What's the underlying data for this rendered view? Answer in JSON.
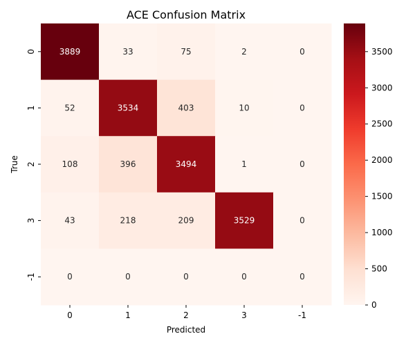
{
  "chart_data": {
    "type": "heatmap",
    "title": "ACE Confusion Matrix",
    "xlabel": "Predicted",
    "ylabel": "True",
    "x_categories": [
      "0",
      "1",
      "2",
      "3",
      "-1"
    ],
    "y_categories": [
      "0",
      "1",
      "2",
      "3",
      "-1"
    ],
    "values": [
      [
        3889,
        33,
        75,
        2,
        0
      ],
      [
        52,
        3534,
        403,
        10,
        0
      ],
      [
        108,
        396,
        3494,
        1,
        0
      ],
      [
        43,
        218,
        209,
        3529,
        0
      ],
      [
        0,
        0,
        0,
        0,
        0
      ]
    ],
    "colormap": "Reds",
    "value_range": [
      0,
      3889
    ],
    "colorbar": {
      "ticks": [
        0,
        500,
        1000,
        1500,
        2000,
        2500,
        3000,
        3500
      ],
      "placement": "right"
    }
  }
}
